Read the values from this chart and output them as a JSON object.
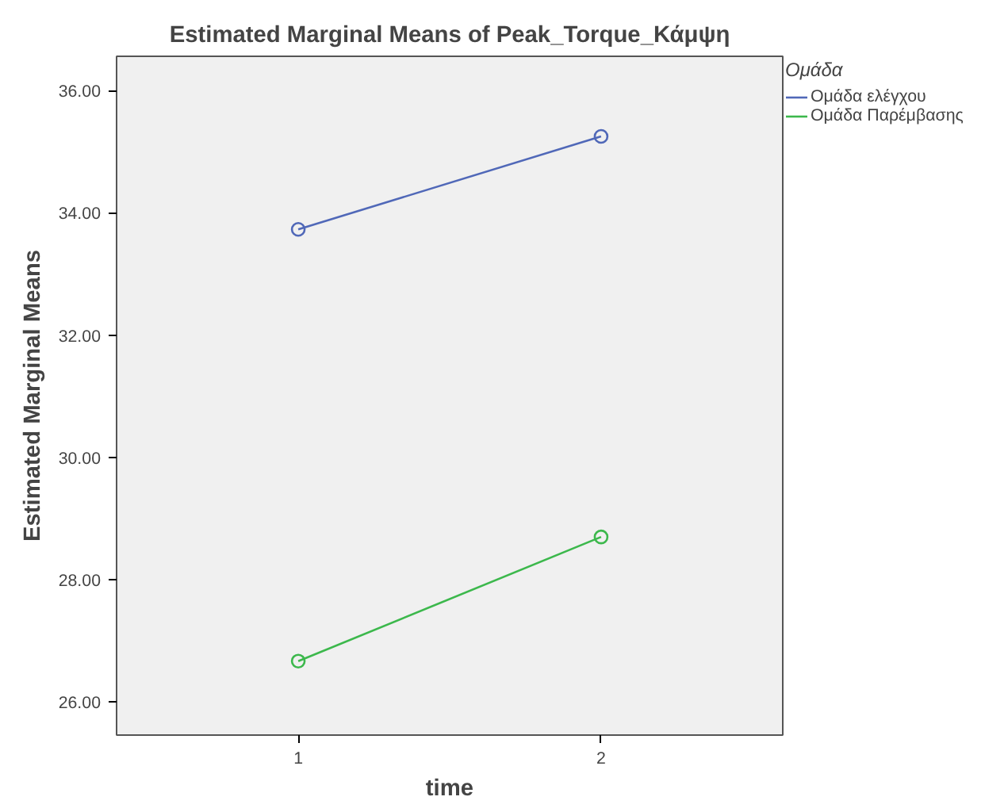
{
  "chart_data": {
    "type": "line",
    "title": "Estimated Marginal Means of Peak_Torque_Κάμψη",
    "xlabel": "time",
    "ylabel": "Estimated Marginal Means",
    "legend_title": "Ομάδα",
    "x": [
      1,
      2
    ],
    "series": [
      {
        "name": "Ομάδα ελέγχου",
        "color": "#5068b8",
        "values": [
          33.73,
          35.25
        ]
      },
      {
        "name": "Ομάδα Παρέμβασης",
        "color": "#3cb84c",
        "values": [
          26.67,
          28.7
        ]
      }
    ],
    "xlim": [
      0.4,
      2.6
    ],
    "xticks": [
      1,
      2
    ],
    "ylim": [
      25.46,
      36.56
    ],
    "yticks": [
      {
        "value": 26,
        "label": "26.00"
      },
      {
        "value": 28,
        "label": "28.00"
      },
      {
        "value": 30,
        "label": "30.00"
      },
      {
        "value": 32,
        "label": "32.00"
      },
      {
        "value": 34,
        "label": "34.00"
      },
      {
        "value": 36,
        "label": "36.00"
      }
    ],
    "marker": "circle",
    "grid": false,
    "legend": "right"
  }
}
